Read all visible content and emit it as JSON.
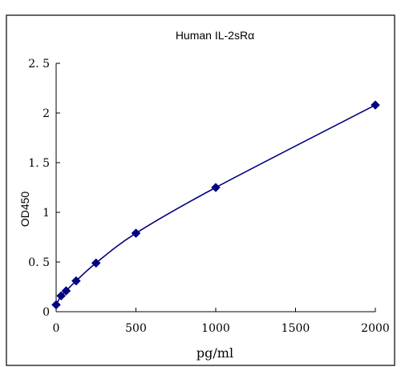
{
  "chart_data": {
    "type": "scatter",
    "title": "Human IL-2sRα",
    "xlabel": "pg/ml",
    "ylabel": "OD450",
    "xlim": [
      0,
      2000
    ],
    "ylim": [
      0,
      2.5
    ],
    "x_ticks": [
      0,
      500,
      1000,
      1500,
      2000
    ],
    "y_ticks": [
      0,
      0.5,
      1,
      1.5,
      2,
      2.5
    ],
    "x_tick_labels": [
      "0",
      "500",
      "1000",
      "1500",
      "2000"
    ],
    "y_tick_labels": [
      "0",
      "0. 5",
      "1",
      "1. 5",
      "2",
      "2. 5"
    ],
    "grid": false,
    "series": [
      {
        "x": [
          0,
          31.25,
          62.5,
          125,
          250,
          500,
          1000,
          2000
        ],
        "y": [
          0.07,
          0.16,
          0.21,
          0.31,
          0.49,
          0.79,
          1.25,
          2.08
        ]
      }
    ],
    "colors": {
      "series": "#000080",
      "axis": "#000000"
    }
  }
}
